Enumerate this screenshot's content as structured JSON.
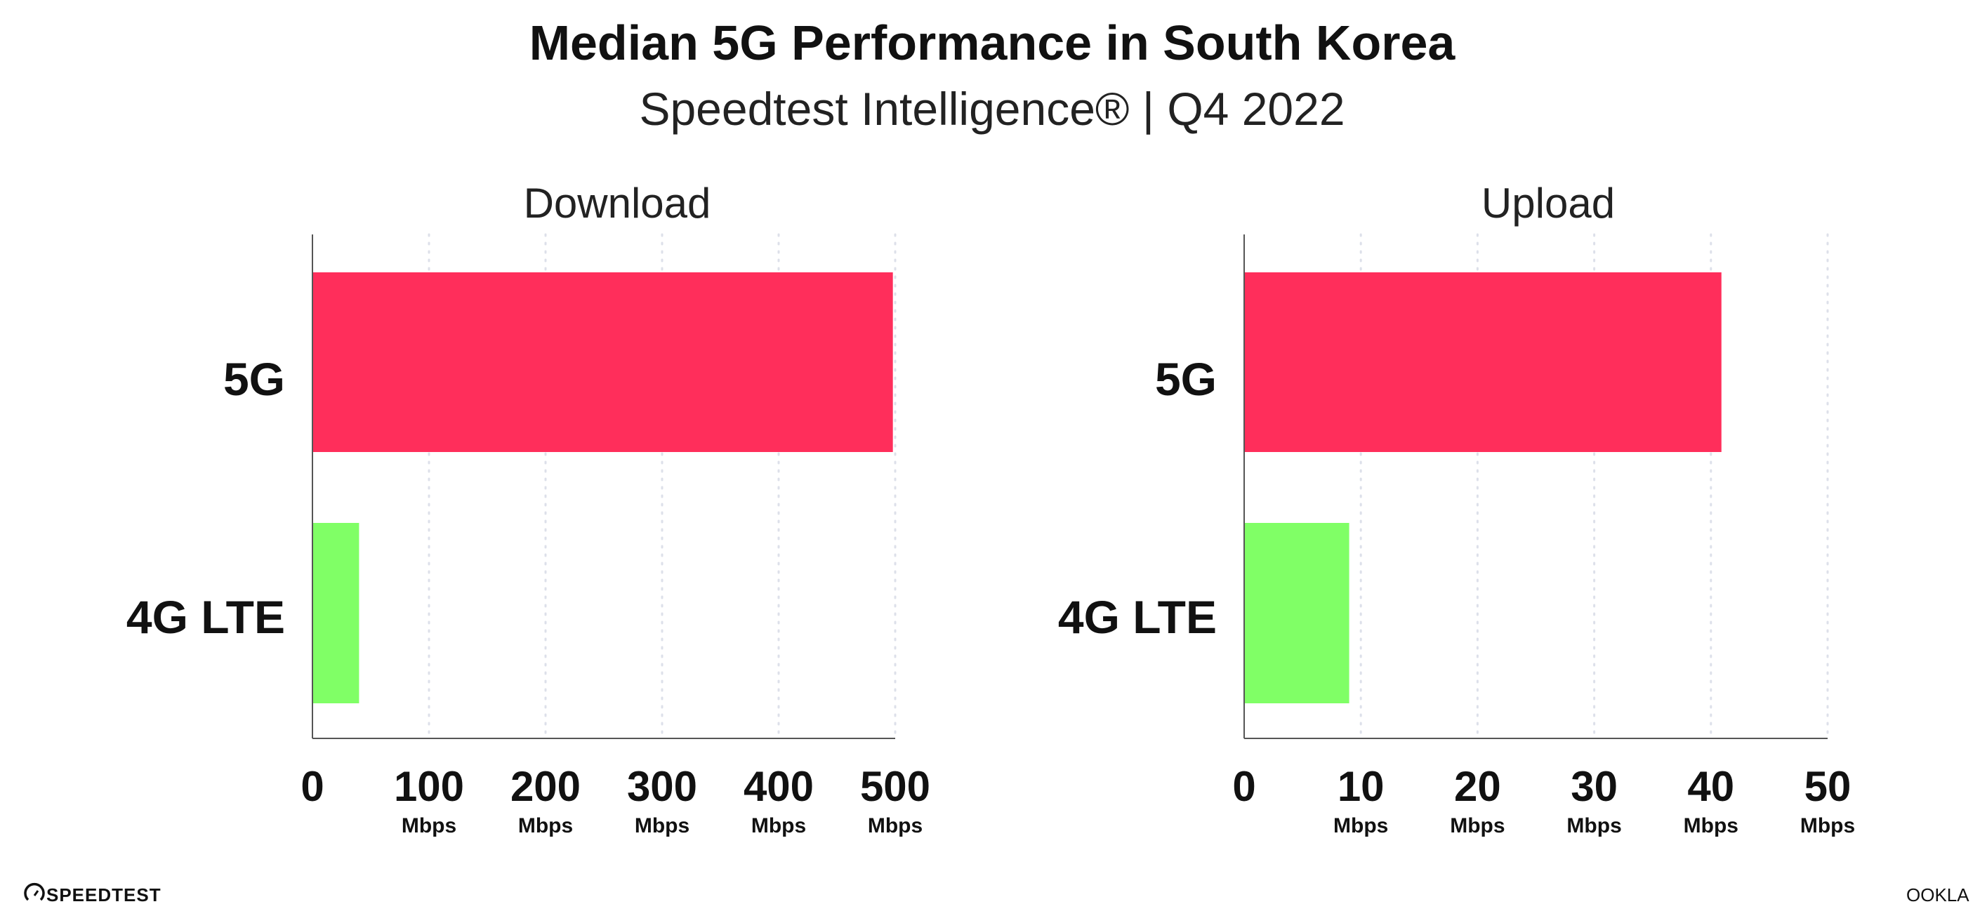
{
  "header": {
    "title": "Median 5G Performance in South Korea",
    "subtitle": "Speedtest Intelligence® | Q4 2022"
  },
  "footer": {
    "left_logo": "SPEEDTEST",
    "right_logo": "OOKLA"
  },
  "colors": {
    "5G": "#FF2E5B",
    "4G LTE": "#80FF66",
    "grid": "#dde0ea",
    "axis": "#555555"
  },
  "chart_data": [
    {
      "type": "bar",
      "orientation": "horizontal",
      "title": "Download",
      "categories": [
        "5G",
        "4G LTE"
      ],
      "values": [
        498,
        40
      ],
      "xlim": [
        0,
        500
      ],
      "xticks": [
        "0",
        "100",
        "200",
        "300",
        "400",
        "500"
      ],
      "tick_unit": "Mbps",
      "grid": "vertical dotted"
    },
    {
      "type": "bar",
      "orientation": "horizontal",
      "title": "Upload",
      "categories": [
        "5G",
        "4G LTE"
      ],
      "values": [
        40.9,
        9.0
      ],
      "xlim": [
        0,
        50
      ],
      "xticks": [
        "0",
        "10",
        "20",
        "30",
        "40",
        "50"
      ],
      "tick_unit": "Mbps",
      "grid": "vertical dotted"
    }
  ]
}
